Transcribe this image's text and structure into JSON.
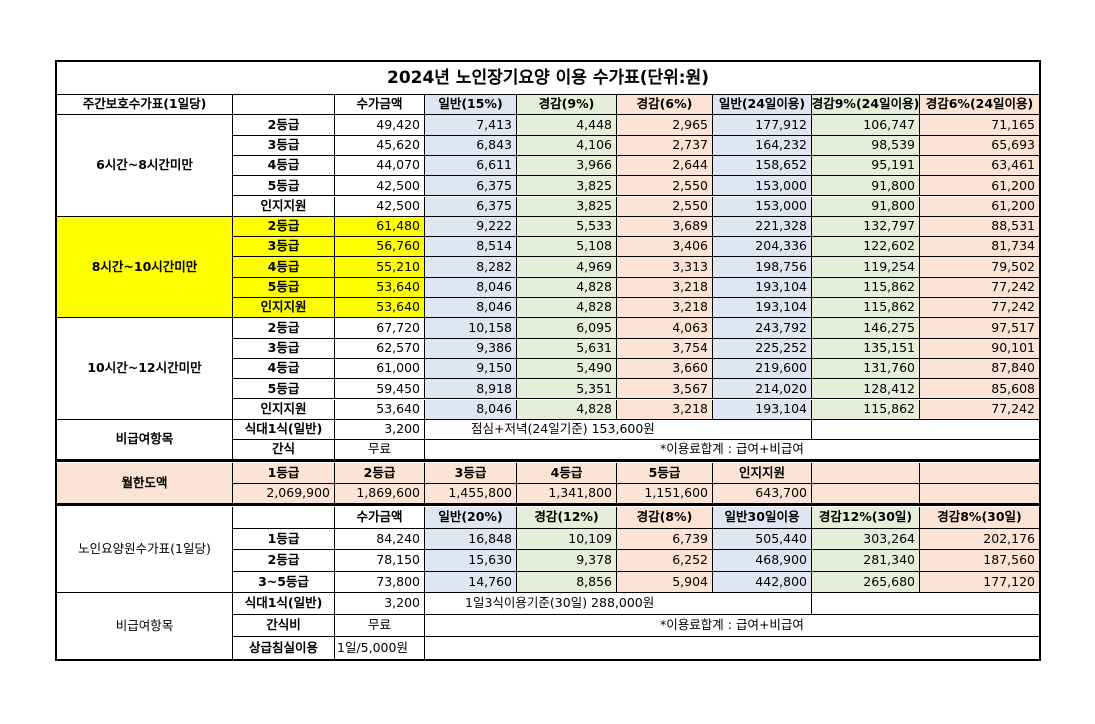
{
  "title": "2024년 노인장기요양 이용 수가표(단위:원)",
  "day_care": {
    "label": "주간보호수가표(1일당)",
    "headers": [
      "수가금액",
      "일반(15%)",
      "경감(9%)",
      "경감(6%)",
      "일반(24일이용)",
      "경감9%(24일이용)",
      "경감6%(24일이용)"
    ],
    "groups": [
      {
        "name": "6시간~8시간미만",
        "rows": [
          [
            "2등급",
            "49,420",
            "7,413",
            "4,448",
            "2,965",
            "177,912",
            "106,747",
            "71,165"
          ],
          [
            "3등급",
            "45,620",
            "6,843",
            "4,106",
            "2,737",
            "164,232",
            "98,539",
            "65,693"
          ],
          [
            "4등급",
            "44,070",
            "6,611",
            "3,966",
            "2,644",
            "158,652",
            "95,191",
            "63,461"
          ],
          [
            "5등급",
            "42,500",
            "6,375",
            "3,825",
            "2,550",
            "153,000",
            "91,800",
            "61,200"
          ],
          [
            "인지지원",
            "42,500",
            "6,375",
            "3,825",
            "2,550",
            "153,000",
            "91,800",
            "61,200"
          ]
        ]
      },
      {
        "name": "8시간~10시간미만",
        "rows": [
          [
            "2등급",
            "61,480",
            "9,222",
            "5,533",
            "3,689",
            "221,328",
            "132,797",
            "88,531"
          ],
          [
            "3등급",
            "56,760",
            "8,514",
            "5,108",
            "3,406",
            "204,336",
            "122,602",
            "81,734"
          ],
          [
            "4등급",
            "55,210",
            "8,282",
            "4,969",
            "3,313",
            "198,756",
            "119,254",
            "79,502"
          ],
          [
            "5등급",
            "53,640",
            "8,046",
            "4,828",
            "3,218",
            "193,104",
            "115,862",
            "77,242"
          ],
          [
            "인지지원",
            "53,640",
            "8,046",
            "4,828",
            "3,218",
            "193,104",
            "115,862",
            "77,242"
          ]
        ]
      },
      {
        "name": "10시간~12시간미만",
        "rows": [
          [
            "2등급",
            "67,720",
            "10,158",
            "6,095",
            "4,063",
            "243,792",
            "146,275",
            "97,517"
          ],
          [
            "3등급",
            "62,570",
            "9,386",
            "5,631",
            "3,754",
            "225,252",
            "135,151",
            "90,101"
          ],
          [
            "4등급",
            "61,000",
            "9,150",
            "5,490",
            "3,660",
            "219,600",
            "131,760",
            "87,840"
          ],
          [
            "5등급",
            "59,450",
            "8,918",
            "5,351",
            "3,567",
            "214,020",
            "128,412",
            "85,608"
          ],
          [
            "인지지원",
            "53,640",
            "8,046",
            "4,828",
            "3,218",
            "193,104",
            "115,862",
            "77,242"
          ]
        ]
      }
    ],
    "non_covered": {
      "label": "비급여항목",
      "meal_label": "식대1식(일반)",
      "meal_price": "3,200",
      "meal_note": "점심+저녁(24일기준) 153,600원",
      "snack_label": "간식",
      "snack_price": "무료",
      "total_note": "*이용료합계 : 급여+비급여"
    }
  },
  "monthly_limit": {
    "label": "월한도액",
    "grades": [
      "1등급",
      "2등급",
      "3등급",
      "4등급",
      "5등급",
      "인지지원"
    ],
    "amounts": [
      "2,069,900",
      "1,869,600",
      "1,455,800",
      "1,341,800",
      "1,151,600",
      "643,700"
    ]
  },
  "nursing_home": {
    "label": "노인요양원수가표(1일당)",
    "headers": [
      "수가금액",
      "일반(20%)",
      "경감(12%)",
      "경감(8%)",
      "일반30일이용",
      "경감12%(30일)",
      "경감8%(30일)"
    ],
    "rows": [
      [
        "1등급",
        "84,240",
        "16,848",
        "10,109",
        "6,739",
        "505,440",
        "303,264",
        "202,176"
      ],
      [
        "2등급",
        "78,150",
        "15,630",
        "9,378",
        "6,252",
        "468,900",
        "281,340",
        "187,560"
      ],
      [
        "3~5등급",
        "73,800",
        "14,760",
        "8,856",
        "5,904",
        "442,800",
        "265,680",
        "177,120"
      ]
    ],
    "non_covered": {
      "label": "비급여항목",
      "meal_label": "식대1식(일반)",
      "meal_price": "3,200",
      "meal_note": "1일3식이용기준(30일) 288,000원",
      "snack_label": "간식비",
      "snack_price": "무료",
      "total_note": "*이용료합계 : 급여+비급여",
      "room_label": "상급침실이용",
      "room_price": "1일/5,000원"
    }
  },
  "colors": {
    "blue_fill": "#dde6f1",
    "green_fill": "#e6eed9",
    "pink_fill": "#fbe4d5",
    "highlight_yellow": "#ffff00"
  }
}
